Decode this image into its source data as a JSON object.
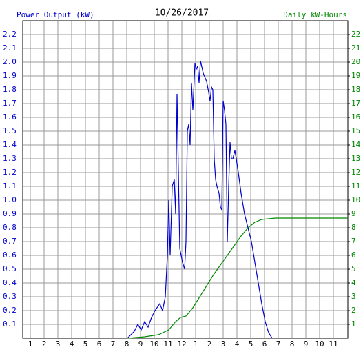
{
  "chart_data": {
    "type": "line",
    "title": "10/26/2017",
    "y_label": "Power Output (kW)",
    "y2_label": "Daily kW-Hours",
    "grid": true,
    "xlim": [
      0.45,
      24.05
    ],
    "xticks": [
      1,
      2,
      3,
      4,
      5,
      6,
      7,
      8,
      9,
      10,
      11,
      12,
      {
        "value": 13,
        "label": "1"
      },
      {
        "value": 14,
        "label": "2"
      },
      {
        "value": 15,
        "label": "3"
      },
      {
        "value": 16,
        "label": "4"
      },
      {
        "value": 17,
        "label": "5"
      },
      {
        "value": 18,
        "label": "6"
      },
      {
        "value": 19,
        "label": "7"
      },
      {
        "value": 20,
        "label": "8"
      },
      {
        "value": 21,
        "label": "9"
      },
      {
        "value": 22,
        "label": "10"
      },
      {
        "value": 23,
        "label": "11"
      }
    ],
    "ylim": [
      0,
      2.3
    ],
    "yticks": [
      0.1,
      0.2,
      0.3,
      0.4,
      0.5,
      0.6,
      0.7,
      0.8,
      0.9,
      {
        "value": 1,
        "label": "1.0"
      },
      1.1,
      1.2,
      1.3,
      1.4,
      1.5,
      1.6,
      1.7,
      1.8,
      1.9,
      {
        "value": 2,
        "label": "2.0"
      },
      2.1,
      2.2
    ],
    "y2lim": [
      0,
      23
    ],
    "y2ticks": [
      1,
      2,
      3,
      4,
      5,
      6,
      7,
      8,
      9,
      10,
      11,
      12,
      13,
      14,
      15,
      16,
      17,
      18,
      19,
      20,
      21,
      22
    ],
    "series": [
      {
        "name": "Power Output (kW)",
        "color": "#0000cc",
        "x": [
          8.05,
          8.55,
          8.8,
          9.05,
          9.3,
          9.55,
          9.8,
          10.05,
          10.4,
          10.6,
          10.8,
          10.95,
          11.05,
          11.15,
          11.3,
          11.45,
          11.55,
          11.65,
          11.75,
          11.85,
          12.05,
          12.2,
          12.3,
          12.4,
          12.5,
          12.6,
          12.7,
          12.8,
          12.95,
          13.05,
          13.15,
          13.25,
          13.35,
          13.55,
          13.8,
          13.95,
          14.05,
          14.15,
          14.25,
          14.35,
          14.45,
          14.55,
          14.7,
          14.8,
          14.9,
          15,
          15.1,
          15.2,
          15.3,
          15.4,
          15.5,
          15.6,
          15.7,
          15.85,
          15.95,
          16.1,
          16.3,
          16.55,
          16.8,
          17.05,
          17.3,
          17.55,
          17.8,
          18.05,
          18.3,
          18.55
        ],
        "values": [
          0,
          0.05,
          0.1,
          0.06,
          0.12,
          0.08,
          0.15,
          0.2,
          0.25,
          0.2,
          0.3,
          0.6,
          1.0,
          0.6,
          1.1,
          1.15,
          0.9,
          1.77,
          1.2,
          0.65,
          0.55,
          0.5,
          0.7,
          1.5,
          1.55,
          1.4,
          1.85,
          1.65,
          1.99,
          1.95,
          1.97,
          1.85,
          2.01,
          1.92,
          1.86,
          1.78,
          1.72,
          1.82,
          1.8,
          1.3,
          1.15,
          1.1,
          1.05,
          0.95,
          0.93,
          1.72,
          1.65,
          1.55,
          0.7,
          1.1,
          1.42,
          1.3,
          1.3,
          1.36,
          1.3,
          1.2,
          1.05,
          0.9,
          0.8,
          0.7,
          0.55,
          0.4,
          0.25,
          0.12,
          0.04,
          0
        ]
      },
      {
        "name": "Daily kW-Hours",
        "color": "#008800",
        "axis": "y2",
        "x": [
          8.05,
          9.3,
          10.3,
          11.05,
          11.55,
          11.9,
          12.3,
          12.8,
          13.3,
          13.8,
          14.3,
          14.8,
          15.3,
          15.8,
          16.3,
          16.8,
          17.3,
          17.8,
          18.3,
          18.8,
          24.05
        ],
        "values": [
          0,
          0.1,
          0.25,
          0.6,
          1.2,
          1.5,
          1.6,
          2.2,
          3.0,
          3.8,
          4.6,
          5.3,
          6.0,
          6.7,
          7.4,
          8.0,
          8.4,
          8.6,
          8.65,
          8.7,
          8.7
        ]
      }
    ]
  }
}
